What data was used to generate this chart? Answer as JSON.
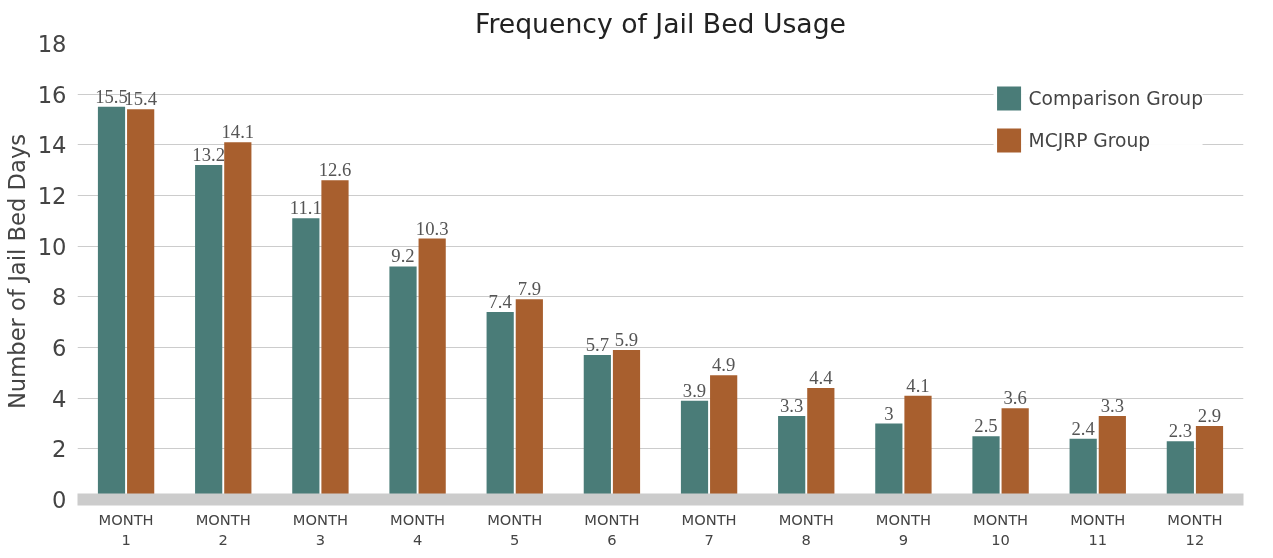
{
  "chart_data": {
    "type": "bar",
    "title": "Frequency of Jail Bed Usage",
    "ylabel": "Number of Jail Bed Days",
    "categories": [
      "MONTH\n1",
      "MONTH\n2",
      "MONTH\n3",
      "MONTH\n4",
      "MONTH\n5",
      "MONTH\n6",
      "MONTH\n7",
      "MONTH\n8",
      "MONTH\n9",
      "MONTH\n10",
      "MONTH\n11",
      "MONTH\n12"
    ],
    "series": [
      {
        "name": "Comparison Group",
        "color": "#4a7c78",
        "values": [
          15.5,
          13.2,
          11.1,
          9.2,
          7.4,
          5.7,
          3.9,
          3.3,
          3,
          2.5,
          2.4,
          2.3
        ]
      },
      {
        "name": "MCJRP Group",
        "color": "#a85f2e",
        "values": [
          15.4,
          14.1,
          12.6,
          10.3,
          7.9,
          5.9,
          4.9,
          4.4,
          4.1,
          3.6,
          3.3,
          2.9
        ]
      }
    ],
    "ylim": [
      0,
      18
    ],
    "yticks": [
      0,
      2,
      4,
      6,
      8,
      10,
      12,
      14,
      16,
      18
    ],
    "grid": "y",
    "legend": "top right",
    "data_labels": true
  }
}
